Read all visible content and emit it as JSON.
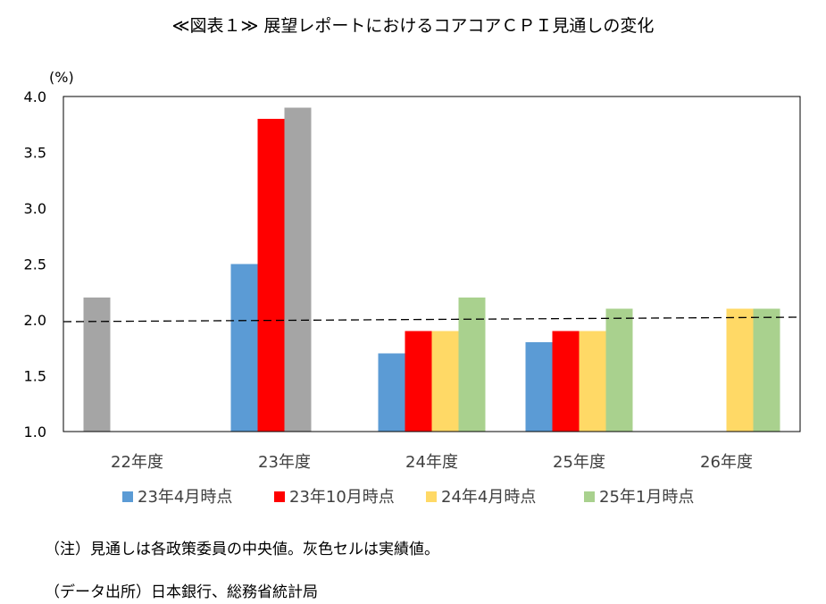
{
  "chart_data": {
    "type": "bar",
    "title": "≪図表１≫ 展望レポートにおけるコアコアＣＰＩ見通しの変化",
    "ylabel": "(%)",
    "ylim": [
      1.0,
      4.0
    ],
    "yticks": [
      "1.0",
      "1.5",
      "2.0",
      "2.5",
      "3.0",
      "3.5",
      "4.0"
    ],
    "categories": [
      "22年度",
      "23年度",
      "24年度",
      "25年度",
      "26年度"
    ],
    "series": [
      {
        "name": "23年4月時点",
        "color": "#5b9bd5",
        "values": [
          null,
          2.5,
          1.7,
          1.8,
          null
        ]
      },
      {
        "name": "23年10月時点",
        "color": "#ff0000",
        "values": [
          null,
          3.8,
          1.9,
          1.9,
          null
        ]
      },
      {
        "name": "24年4月時点",
        "color": "#ffd966",
        "values": [
          null,
          null,
          1.9,
          1.9,
          2.1
        ]
      },
      {
        "name": "25年1月時点",
        "color": "#a9d18e",
        "values": [
          null,
          null,
          2.2,
          2.1,
          2.1
        ]
      }
    ],
    "actual": {
      "color": "#a5a5a5",
      "values": [
        2.2,
        3.9,
        null,
        null,
        null
      ]
    },
    "reference_line": 2.0,
    "legend_position": "bottom",
    "grid": false
  },
  "notes": {
    "note1": "（注）見通しは各政策委員の中央値。灰色セルは実績値。",
    "note2": "（データ出所）日本銀行、総務省統計局"
  }
}
